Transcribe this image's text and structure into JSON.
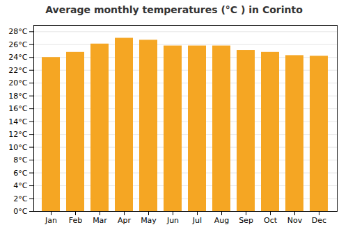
{
  "chart_data": {
    "type": "bar",
    "title": "Average monthly temperatures (°C ) in Corinto",
    "categories": [
      "Jan",
      "Feb",
      "Mar",
      "Apr",
      "May",
      "Jun",
      "Jul",
      "Aug",
      "Sep",
      "Oct",
      "Nov",
      "Dec"
    ],
    "values": [
      24.0,
      24.8,
      26.1,
      27.0,
      26.7,
      25.8,
      25.8,
      25.8,
      25.1,
      24.8,
      24.3,
      24.2
    ],
    "color": "#F5A623",
    "ylim": [
      0,
      29
    ],
    "yticks": [
      {
        "value": 0,
        "label": "0°C"
      },
      {
        "value": 2,
        "label": "2°C"
      },
      {
        "value": 4,
        "label": "4°C"
      },
      {
        "value": 6,
        "label": "6°C"
      },
      {
        "value": 8,
        "label": "8°C"
      },
      {
        "value": 10,
        "label": "10°C"
      },
      {
        "value": 12,
        "label": "12°C"
      },
      {
        "value": 14,
        "label": "14°C"
      },
      {
        "value": 16,
        "label": "16°C"
      },
      {
        "value": 18,
        "label": "18°C"
      },
      {
        "value": 20,
        "label": "20°C"
      },
      {
        "value": 22,
        "label": "22°C"
      },
      {
        "value": 24,
        "label": "24°C"
      },
      {
        "value": 26,
        "label": "26°C"
      },
      {
        "value": 28,
        "label": "28°C"
      }
    ],
    "grid": true
  }
}
